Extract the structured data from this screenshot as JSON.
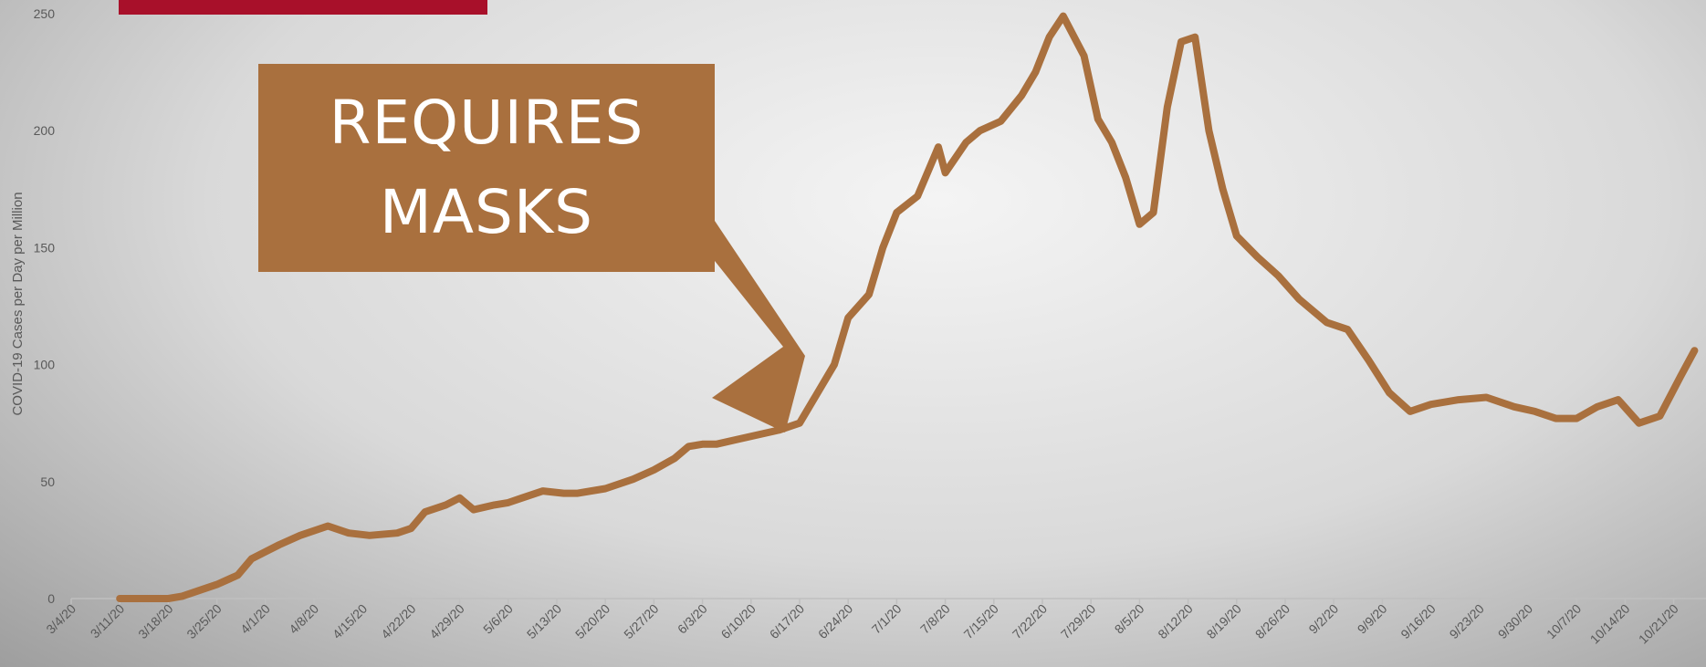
{
  "annotation": {
    "line1": "REQUIRES",
    "line2": "MASKS"
  },
  "colors": {
    "line": "#a9703e",
    "callout": "#a9703e",
    "red_bar": "#a8102a",
    "axis_text": "#595959"
  },
  "chart_data": {
    "type": "line",
    "ylabel": "COVID-19 Cases per Day per Million",
    "ylim": [
      0,
      250
    ],
    "yticks": [
      0,
      50,
      100,
      150,
      200,
      250
    ],
    "x_tick_labels": [
      "3/4/20",
      "3/11/20",
      "3/18/20",
      "3/25/20",
      "4/1/20",
      "4/8/20",
      "4/15/20",
      "4/22/20",
      "4/29/20",
      "5/6/20",
      "5/13/20",
      "5/20/20",
      "5/27/20",
      "6/3/20",
      "6/10/20",
      "6/17/20",
      "6/24/20",
      "7/1/20",
      "7/8/20",
      "7/15/20",
      "7/22/20",
      "7/29/20",
      "8/5/20",
      "8/12/20",
      "8/19/20",
      "8/26/20",
      "9/2/20",
      "9/9/20",
      "9/16/20",
      "9/23/20",
      "9/30/20",
      "10/7/20",
      "10/14/20",
      "10/21/20"
    ],
    "series": [
      {
        "x": [
          "3/11/20",
          "3/14/20",
          "3/18/20",
          "3/20/20",
          "3/23/20",
          "3/25/20",
          "3/28/20",
          "3/30/20",
          "4/1/20",
          "4/3/20",
          "4/6/20",
          "4/10/20",
          "4/13/20",
          "4/16/20",
          "4/20/20",
          "4/22/20",
          "4/24/20",
          "4/27/20",
          "4/29/20",
          "5/1/20",
          "5/4/20",
          "5/6/20",
          "5/8/20",
          "5/11/20",
          "5/14/20",
          "5/16/20",
          "5/20/20",
          "5/24/20",
          "5/27/20",
          "5/30/20",
          "6/1/20",
          "6/3/20",
          "6/5/20",
          "6/8/20",
          "6/11/20",
          "6/14/20",
          "6/17/20",
          "6/19/20",
          "6/22/20",
          "6/24/20",
          "6/27/20",
          "6/29/20",
          "7/1/20",
          "7/4/20",
          "7/7/20",
          "7/8/20",
          "7/11/20",
          "7/13/20",
          "7/16/20",
          "7/19/20",
          "7/21/20",
          "7/23/20",
          "7/25/20",
          "7/28/20",
          "7/30/20",
          "8/1/20",
          "8/3/20",
          "8/5/20",
          "8/7/20",
          "8/9/20",
          "8/11/20",
          "8/13/20",
          "8/15/20",
          "8/17/20",
          "8/19/20",
          "8/22/20",
          "8/25/20",
          "8/28/20",
          "9/1/20",
          "9/4/20",
          "9/7/20",
          "9/10/20",
          "9/13/20",
          "9/16/20",
          "9/20/20",
          "9/24/20",
          "9/28/20",
          "10/1/20",
          "10/4/20",
          "10/7/20",
          "10/10/20",
          "10/13/20",
          "10/16/20",
          "10/19/20",
          "10/22/20",
          "10/24/20"
        ],
        "values": [
          0,
          0,
          0,
          1,
          4,
          6,
          10,
          17,
          20,
          23,
          27,
          31,
          28,
          27,
          28,
          30,
          37,
          40,
          43,
          38,
          40,
          41,
          43,
          46,
          45,
          45,
          47,
          51,
          55,
          60,
          65,
          66,
          66,
          68,
          70,
          72,
          75,
          85,
          100,
          120,
          130,
          150,
          165,
          172,
          193,
          182,
          195,
          200,
          204,
          215,
          225,
          240,
          249,
          232,
          205,
          195,
          180,
          160,
          165,
          210,
          238,
          240,
          200,
          175,
          155,
          146,
          138,
          128,
          118,
          115,
          102,
          88,
          80,
          83,
          85,
          86,
          82,
          80,
          77,
          77,
          82,
          85,
          75,
          78,
          95,
          106
        ]
      }
    ]
  }
}
